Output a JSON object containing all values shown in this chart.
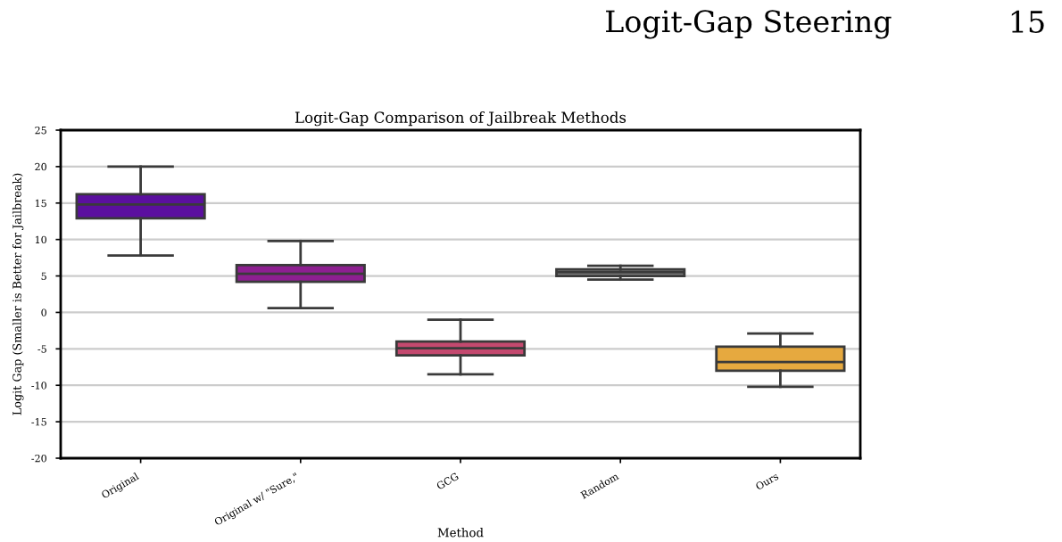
{
  "chart_data": {
    "type": "box",
    "title": "Logit-Gap Comparison of Jailbreak Methods",
    "xlabel": "Method",
    "ylabel": "Logit Gap (Smaller is Better for Jailbreak)",
    "categories": [
      "Original",
      "Original w/ \"Sure,\"",
      "GCG",
      "Random",
      "Ours"
    ],
    "colors": [
      "#5b0f9f",
      "#8e1f91",
      "#c4496f",
      "#7d7d7d",
      "#e6a93f"
    ],
    "boxes": [
      {
        "low": 7.8,
        "q1": 12.9,
        "median": 14.8,
        "q3": 16.2,
        "high": 20.0
      },
      {
        "low": 0.6,
        "q1": 4.2,
        "median": 5.3,
        "q3": 6.5,
        "high": 9.8
      },
      {
        "low": -8.5,
        "q1": -5.9,
        "median": -4.9,
        "q3": -4.0,
        "high": -1.0
      },
      {
        "low": 4.5,
        "q1": 5.0,
        "median": 5.5,
        "q3": 5.9,
        "high": 6.4
      },
      {
        "low": -10.2,
        "q1": -8.0,
        "median": -6.8,
        "q3": -4.7,
        "high": -2.9
      }
    ],
    "ylim": [
      -20,
      25
    ],
    "yticks": [
      -20,
      -15,
      -10,
      -5,
      0,
      5,
      10,
      15,
      20,
      25
    ],
    "grid": "y",
    "annotations": [
      "Logit-Gap Steering",
      "15"
    ]
  }
}
